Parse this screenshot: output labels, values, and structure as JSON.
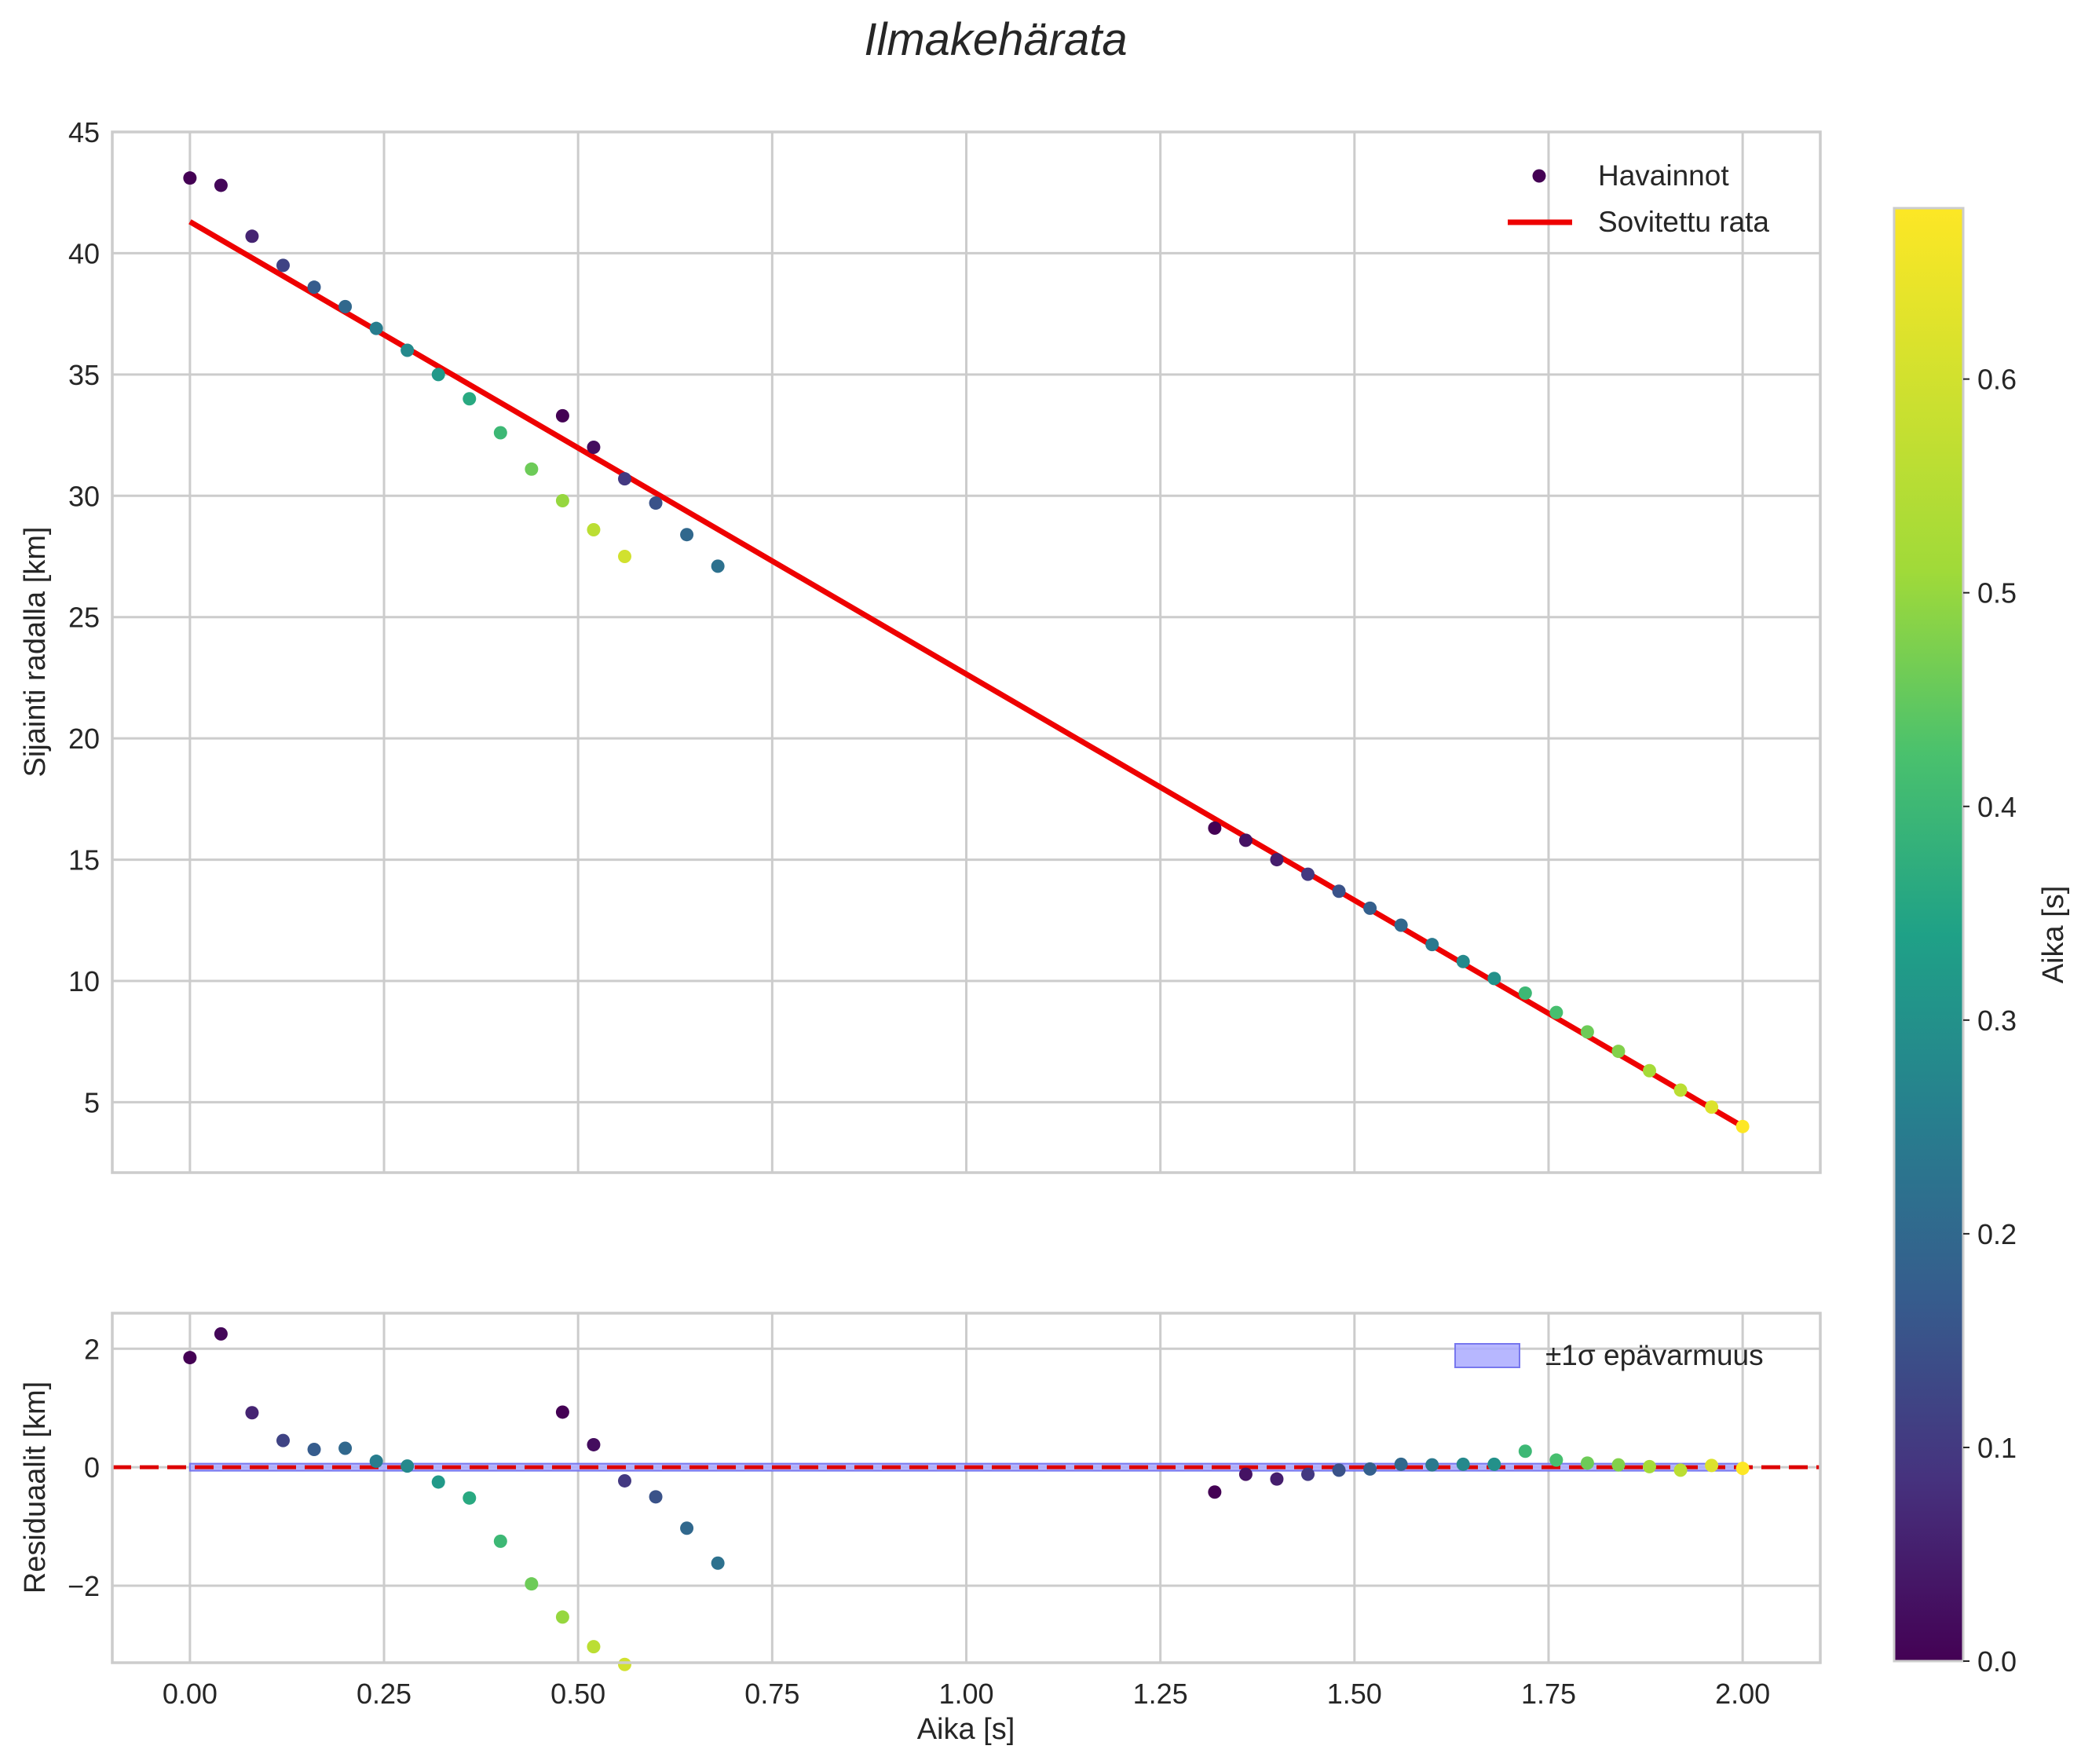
{
  "chart_data": {
    "type": "scatter",
    "title": "Ilmakehärata",
    "colormap": "viridis",
    "colors": {
      "fit_line": "#ee0000",
      "zero_line": "#dd0000",
      "band_fill": "#aaaaff",
      "band_edge": "#7777ee",
      "grid": "#cccccc",
      "text": "#262626"
    },
    "x": [
      0.0,
      0.04,
      0.08,
      0.12,
      0.16,
      0.2,
      0.24,
      0.28,
      0.32,
      0.36,
      0.4,
      0.44,
      0.48,
      0.48,
      0.52,
      0.52,
      0.56,
      0.56,
      0.6,
      0.64,
      0.68,
      1.32,
      1.36,
      1.4,
      1.44,
      1.48,
      1.52,
      1.56,
      1.6,
      1.64,
      1.68,
      1.72,
      1.76,
      1.8,
      1.84,
      1.88,
      1.92,
      1.96,
      2.0
    ],
    "c": [
      0.0,
      0.01,
      0.06,
      0.12,
      0.17,
      0.2,
      0.25,
      0.28,
      0.32,
      0.36,
      0.4,
      0.46,
      0.0,
      0.5,
      0.02,
      0.56,
      0.1,
      0.6,
      0.15,
      0.2,
      0.22,
      0.0,
      0.03,
      0.05,
      0.1,
      0.15,
      0.18,
      0.2,
      0.24,
      0.28,
      0.3,
      0.4,
      0.42,
      0.46,
      0.48,
      0.52,
      0.56,
      0.62,
      0.68
    ],
    "clim": [
      0,
      0.68
    ],
    "main": {
      "ylabel": "Sijainti radalla [km]",
      "xlim": [
        -0.1,
        2.1
      ],
      "ylim": [
        2.1,
        45.0
      ],
      "yticks": [
        5,
        10,
        15,
        20,
        25,
        30,
        35,
        40,
        45
      ],
      "y": [
        43.1,
        42.8,
        40.7,
        39.5,
        38.6,
        37.8,
        36.9,
        36.0,
        35.0,
        34.0,
        32.6,
        31.1,
        33.3,
        29.8,
        32.0,
        28.6,
        30.7,
        27.5,
        29.7,
        28.4,
        27.1,
        16.3,
        15.8,
        15.0,
        14.4,
        13.7,
        13.0,
        12.3,
        11.5,
        10.8,
        10.1,
        9.5,
        8.7,
        7.9,
        7.1,
        6.3,
        5.5,
        4.8,
        4.0
      ],
      "fit": {
        "x": [
          0.0,
          2.0
        ],
        "y": [
          41.3,
          4.0
        ]
      },
      "legend": [
        "Havainnot",
        "Sovitettu rata"
      ]
    },
    "residual": {
      "ylabel": "Residuaalit [km]",
      "xlabel": "Aika [s]",
      "xlim": [
        -0.1,
        2.1
      ],
      "ylim": [
        -3.3,
        2.6
      ],
      "yticks": [
        -2,
        0,
        2
      ],
      "ytick_labels": [
        "−2",
        "0",
        "2"
      ],
      "y": [
        1.85,
        2.25,
        0.92,
        0.45,
        0.3,
        0.32,
        0.1,
        0.02,
        -0.25,
        -0.52,
        -1.25,
        -1.97,
        0.93,
        -2.53,
        0.38,
        -3.03,
        -0.23,
        -3.33,
        -0.5,
        -1.03,
        -1.62,
        -0.42,
        -0.12,
        -0.2,
        -0.12,
        -0.05,
        -0.03,
        0.05,
        0.04,
        0.05,
        0.05,
        0.27,
        0.12,
        0.07,
        0.04,
        0.01,
        -0.05,
        0.03,
        -0.02
      ],
      "band": [
        -0.06,
        0.06
      ],
      "legend": [
        "±1σ epävarmuus"
      ]
    },
    "xticks": [
      0.0,
      0.25,
      0.5,
      0.75,
      1.0,
      1.25,
      1.5,
      1.75,
      2.0
    ],
    "xtick_labels": [
      "0.00",
      "0.25",
      "0.50",
      "0.75",
      "1.00",
      "1.25",
      "1.50",
      "1.75",
      "2.00"
    ],
    "colorbar": {
      "label": "Aika [s]",
      "ticks": [
        0.0,
        0.1,
        0.2,
        0.3,
        0.4,
        0.5,
        0.6
      ],
      "tick_labels": [
        "0.0",
        "0.1",
        "0.2",
        "0.3",
        "0.4",
        "0.5",
        "0.6"
      ]
    }
  }
}
